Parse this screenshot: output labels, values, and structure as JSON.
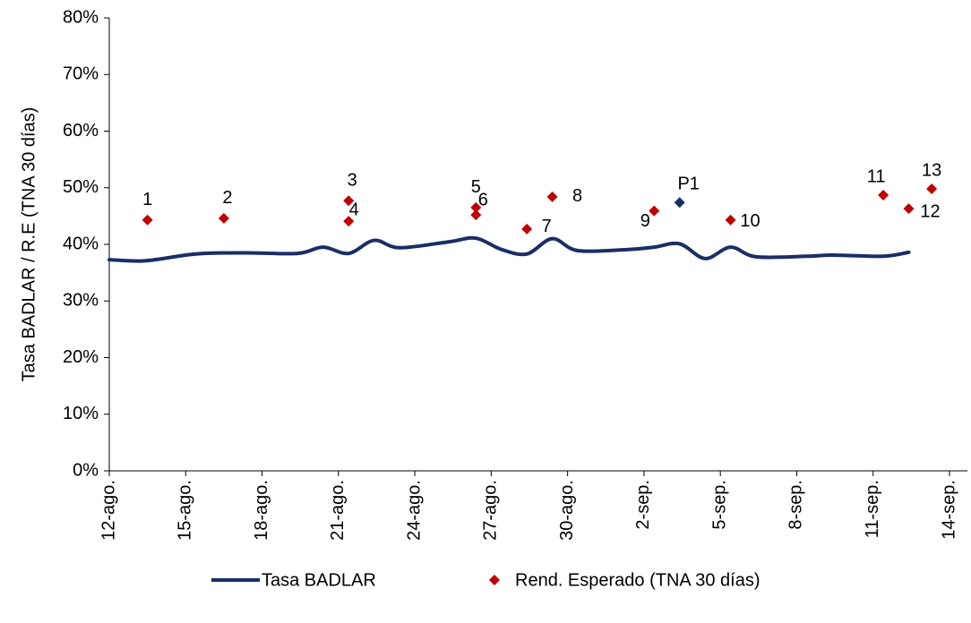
{
  "chart_data": {
    "type": "line-scatter",
    "y_label": "Tasa BADLAR / R.E (TNA 30 días)",
    "xlim": [
      0,
      33
    ],
    "xticks": [
      {
        "value": 0,
        "label": "12-ago."
      },
      {
        "value": 3,
        "label": "15-ago."
      },
      {
        "value": 6,
        "label": "18-ago."
      },
      {
        "value": 9,
        "label": "21-ago."
      },
      {
        "value": 12,
        "label": "24-ago."
      },
      {
        "value": 15,
        "label": "27-ago."
      },
      {
        "value": 18,
        "label": "30-ago."
      },
      {
        "value": 21,
        "label": "2-sep."
      },
      {
        "value": 24,
        "label": "5-sep."
      },
      {
        "value": 27,
        "label": "8-sep."
      },
      {
        "value": 30,
        "label": "11-sep."
      },
      {
        "value": 33,
        "label": "14-sep."
      }
    ],
    "ylim": [
      0,
      80
    ],
    "yticks": [
      {
        "value": 0,
        "label": "0%"
      },
      {
        "value": 10,
        "label": "10%"
      },
      {
        "value": 20,
        "label": "20%"
      },
      {
        "value": 30,
        "label": "30%"
      },
      {
        "value": 40,
        "label": "40%"
      },
      {
        "value": 50,
        "label": "50%"
      },
      {
        "value": 60,
        "label": "60%"
      },
      {
        "value": 70,
        "label": "70%"
      },
      {
        "value": 80,
        "label": "80%"
      }
    ],
    "series": [
      {
        "name": "Tasa BADLAR",
        "kind": "line",
        "color": "#1a2e66",
        "x": [
          0,
          1.4,
          3.4,
          5.4,
          7.4,
          8.4,
          9.4,
          10.4,
          11.4,
          13.4,
          14.4,
          15.4,
          16.4,
          17.4,
          18.4,
          20.4,
          21.4,
          22.4,
          23.4,
          24.4,
          25.4,
          27.4,
          28.4,
          30.4,
          31.4
        ],
        "values": [
          37.3,
          37.1,
          38.3,
          38.5,
          38.4,
          39.5,
          38.4,
          40.7,
          39.4,
          40.5,
          41.1,
          39.1,
          38.3,
          41.0,
          38.9,
          39.1,
          39.5,
          40.1,
          37.5,
          39.5,
          37.8,
          37.9,
          38.1,
          37.9,
          38.6
        ]
      },
      {
        "name": "Rend. Esperado (TNA 30 días)",
        "kind": "scatter",
        "color": "#c00000",
        "x": [
          1.5,
          4.5,
          9.4,
          9.4,
          14.4,
          14.4,
          16.4,
          17.4,
          21.4,
          24.4,
          30.4,
          31.4,
          32.3,
          22.4
        ],
        "values": [
          44.3,
          44.6,
          47.7,
          44.1,
          46.5,
          45.2,
          42.7,
          48.4,
          45.9,
          44.3,
          48.7,
          46.3,
          49.8,
          47.4
        ],
        "point_labels": [
          "1",
          "2",
          "3",
          "4",
          "5",
          "6",
          "7",
          "8",
          "9",
          "10",
          "11",
          "12",
          "13",
          "P1"
        ],
        "point_colors": [
          "#c00000",
          "#c00000",
          "#c00000",
          "#c00000",
          "#c00000",
          "#c00000",
          "#c00000",
          "#c00000",
          "#c00000",
          "#c00000",
          "#c00000",
          "#c00000",
          "#c00000",
          "#1a2e66"
        ]
      }
    ]
  }
}
